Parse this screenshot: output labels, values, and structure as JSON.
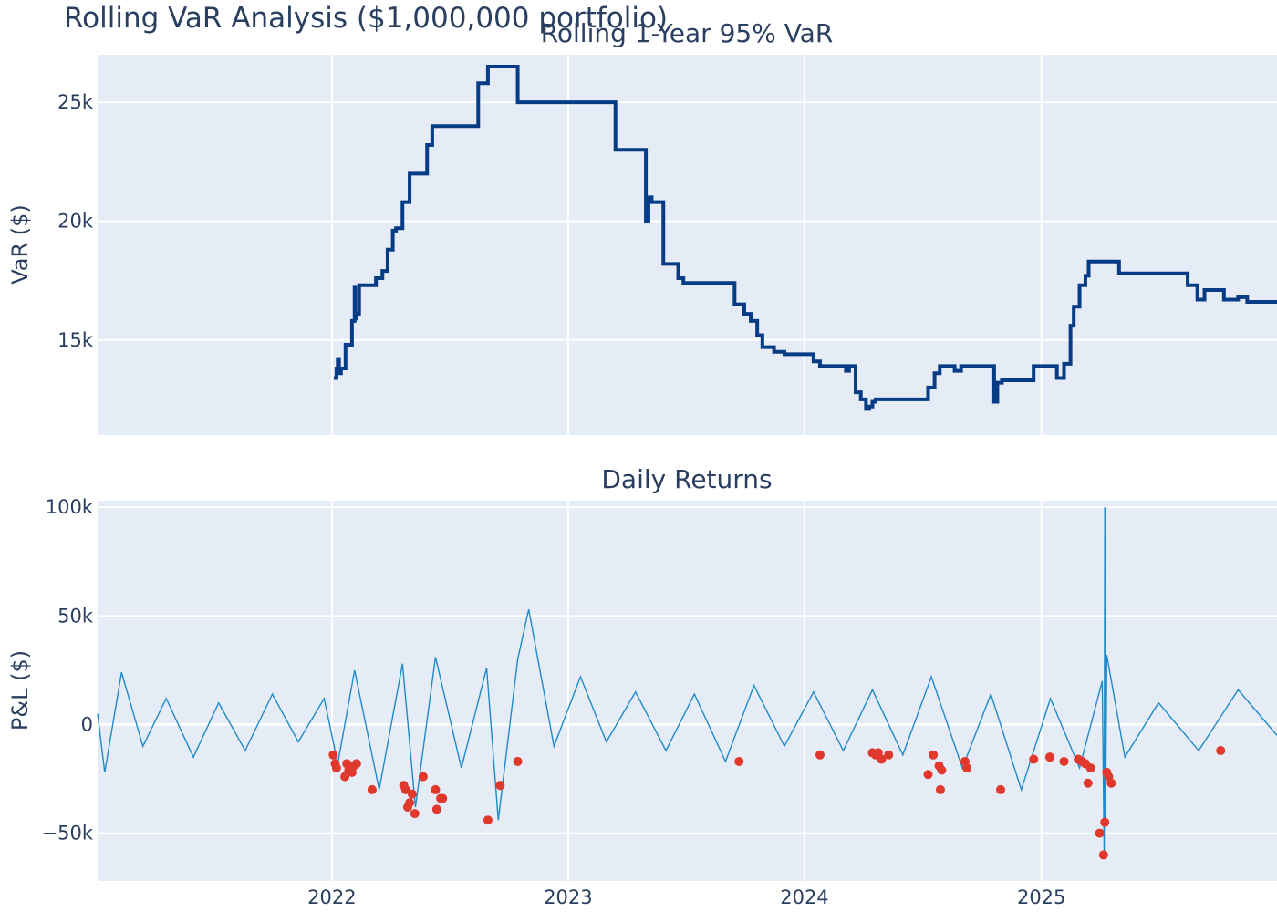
{
  "title": "Rolling VaR Analysis ($1,000,000 portfolio)",
  "colors": {
    "var_line": "#053c85",
    "returns_line": "#1f8ac7",
    "breach": "#e0382c",
    "plot_bg": "#e5ecf6",
    "grid": "#ffffff",
    "text": "#2a3f5f"
  },
  "chart_data": [
    {
      "type": "line",
      "title": "Rolling 1-Year 95% VaR",
      "ylabel": "VaR ($)",
      "xlabel": "",
      "xlim": [
        "2021-01-04",
        "2025-12-31"
      ],
      "ylim": [
        11000,
        27000
      ],
      "x_ticks": [
        "2022",
        "2023",
        "2024",
        "2025"
      ],
      "y_ticks": [
        15000,
        20000,
        25000
      ],
      "y_tick_labels": [
        "15k",
        "20k",
        "25k"
      ],
      "grid": true,
      "series": [
        {
          "type": "step",
          "x": [
            "2022-01-04",
            "2022-01-08",
            "2022-01-10",
            "2022-01-12",
            "2022-01-15",
            "2022-01-22",
            "2022-02-01",
            "2022-02-05",
            "2022-02-06",
            "2022-02-08",
            "2022-02-12",
            "2022-02-15",
            "2022-03-10",
            "2022-03-20",
            "2022-03-28",
            "2022-04-05",
            "2022-04-10",
            "2022-04-15",
            "2022-04-20",
            "2022-05-01",
            "2022-05-20",
            "2022-05-28",
            "2022-06-05",
            "2022-08-15",
            "2022-08-30",
            "2022-09-20",
            "2022-10-15",
            "2022-11-05",
            "2023-03-15",
            "2023-05-01",
            "2023-05-05",
            "2023-05-10",
            "2023-05-15",
            "2023-05-28",
            "2023-06-20",
            "2023-06-28",
            "2023-07-10",
            "2023-09-15",
            "2023-09-30",
            "2023-10-10",
            "2023-10-20",
            "2023-10-28",
            "2023-11-15",
            "2023-12-01",
            "2024-01-15",
            "2024-01-25",
            "2024-02-15",
            "2024-03-05",
            "2024-03-10",
            "2024-03-20",
            "2024-03-28",
            "2024-04-05",
            "2024-04-10",
            "2024-04-15",
            "2024-04-20",
            "2024-07-10",
            "2024-07-20",
            "2024-07-28",
            "2024-08-10",
            "2024-08-20",
            "2024-08-30",
            "2024-10-20",
            "2024-10-25",
            "2024-11-01",
            "2024-11-15",
            "2024-12-20",
            "2025-01-15",
            "2025-01-25",
            "2025-02-05",
            "2025-02-15",
            "2025-02-20",
            "2025-03-01",
            "2025-03-10",
            "2025-03-15",
            "2025-04-05",
            "2025-04-15",
            "2025-05-01",
            "2025-08-15",
            "2025-08-30",
            "2025-09-10",
            "2025-10-10",
            "2025-11-01",
            "2025-11-15",
            "2025-12-31"
          ],
          "y": [
            13400,
            13800,
            14200,
            13600,
            13800,
            14800,
            15800,
            17200,
            15900,
            16100,
            17300,
            17300,
            17600,
            17900,
            18800,
            19600,
            19700,
            19700,
            20800,
            22000,
            22000,
            23200,
            24000,
            25800,
            26500,
            26500,
            25000,
            25000,
            23000,
            20000,
            21000,
            20800,
            20800,
            18200,
            17600,
            17400,
            17400,
            16500,
            16100,
            15800,
            15200,
            14700,
            14500,
            14400,
            14100,
            13900,
            13900,
            13700,
            13900,
            12800,
            12500,
            12100,
            12200,
            12400,
            12500,
            13000,
            13600,
            13900,
            13900,
            13700,
            13900,
            12400,
            13200,
            13300,
            13300,
            13900,
            13900,
            13400,
            14000,
            15600,
            16400,
            17300,
            17700,
            18300,
            18300,
            18300,
            17800,
            17300,
            16700,
            17100,
            16700,
            16800,
            16600,
            16600
          ]
        }
      ]
    },
    {
      "type": "line",
      "title": "Daily Returns",
      "ylabel": "P&L ($)",
      "xlabel": "",
      "xlim": [
        "2021-01-04",
        "2025-12-31"
      ],
      "ylim": [
        -72000,
        103000
      ],
      "x_ticks": [
        "2022",
        "2023",
        "2024",
        "2025"
      ],
      "y_ticks": [
        -50000,
        0,
        50000,
        100000
      ],
      "y_tick_labels": [
        "−50k",
        "0",
        "50k",
        "100k"
      ],
      "grid": true,
      "series": [
        {
          "name": "",
          "type": "line",
          "x": [
            "2021-01-04",
            "2021-01-15",
            "2021-02-10",
            "2021-03-15",
            "2021-04-20",
            "2021-06-01",
            "2021-07-10",
            "2021-08-20",
            "2021-10-01",
            "2021-11-10",
            "2021-12-20",
            "2022-01-10",
            "2022-02-05",
            "2022-03-15",
            "2022-04-20",
            "2022-05-10",
            "2022-06-10",
            "2022-07-20",
            "2022-08-28",
            "2022-09-15",
            "2022-10-15",
            "2022-11-01",
            "2022-12-10",
            "2023-01-20",
            "2023-03-01",
            "2023-04-15",
            "2023-06-01",
            "2023-07-15",
            "2023-09-01",
            "2023-10-15",
            "2023-12-01",
            "2024-01-15",
            "2024-03-01",
            "2024-04-15",
            "2024-06-01",
            "2024-07-15",
            "2024-09-01",
            "2024-10-15",
            "2024-12-01",
            "2025-01-15",
            "2025-03-01",
            "2025-04-05",
            "2025-04-08",
            "2025-04-09",
            "2025-04-10",
            "2025-04-12",
            "2025-05-10",
            "2025-07-01",
            "2025-09-01",
            "2025-11-01",
            "2025-12-31"
          ],
          "y": [
            5000,
            -22000,
            24000,
            -10000,
            12000,
            -15000,
            10000,
            -12000,
            14000,
            -8000,
            12000,
            -18000,
            25000,
            -30000,
            28000,
            -38000,
            31000,
            -20000,
            26000,
            -44000,
            30000,
            53000,
            -10000,
            22000,
            -8000,
            15000,
            -12000,
            14000,
            -17000,
            18000,
            -10000,
            15000,
            -12000,
            16000,
            -14000,
            22000,
            -20000,
            14000,
            -30000,
            12000,
            -20000,
            20000,
            -60000,
            100000,
            -45000,
            32000,
            -15000,
            10000,
            -12000,
            16000,
            -5000
          ]
        },
        {
          "name": "",
          "type": "scatter",
          "x": [
            "2022-01-03",
            "2022-01-06",
            "2022-01-08",
            "2022-01-21",
            "2022-01-24",
            "2022-01-27",
            "2022-02-01",
            "2022-02-04",
            "2022-02-08",
            "2022-03-04",
            "2022-04-22",
            "2022-04-25",
            "2022-04-28",
            "2022-05-01",
            "2022-05-05",
            "2022-05-09",
            "2022-05-22",
            "2022-06-10",
            "2022-06-12",
            "2022-06-18",
            "2022-06-21",
            "2022-08-30",
            "2022-09-18",
            "2022-10-15",
            "2023-09-22",
            "2024-01-25",
            "2024-04-15",
            "2024-04-20",
            "2024-04-24",
            "2024-04-29",
            "2024-05-10",
            "2024-07-10",
            "2024-07-18",
            "2024-07-27",
            "2024-07-29",
            "2024-07-31",
            "2024-09-05",
            "2024-09-08",
            "2024-10-30",
            "2024-12-20",
            "2025-01-14",
            "2025-02-05",
            "2025-02-27",
            "2025-03-05",
            "2025-03-10",
            "2025-03-14",
            "2025-03-18",
            "2025-04-01",
            "2025-04-07",
            "2025-04-09",
            "2025-04-12",
            "2025-04-15",
            "2025-04-19",
            "2025-10-05"
          ],
          "y": [
            -14000,
            -18000,
            -20000,
            -24000,
            -18000,
            -21000,
            -22000,
            -19000,
            -18000,
            -30000,
            -28000,
            -30000,
            -38000,
            -36000,
            -32000,
            -41000,
            -24000,
            -30000,
            -39000,
            -34000,
            -34000,
            -44000,
            -28000,
            -17000,
            -17000,
            -14000,
            -13000,
            -14000,
            -13000,
            -16000,
            -14000,
            -23000,
            -14000,
            -19000,
            -30000,
            -21000,
            -17000,
            -20000,
            -30000,
            -16000,
            -15000,
            -17000,
            -16000,
            -17000,
            -18000,
            -27000,
            -20000,
            -50000,
            -60000,
            -45000,
            -22000,
            -24000,
            -27000,
            -12000
          ]
        }
      ]
    }
  ]
}
